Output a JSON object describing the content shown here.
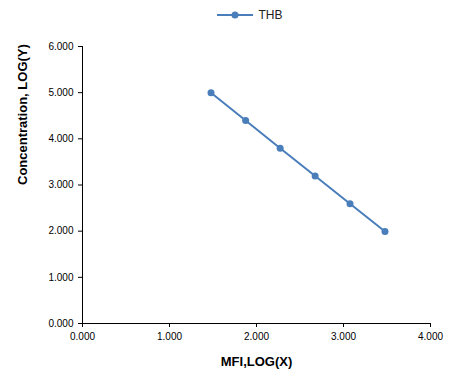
{
  "chart_data": {
    "type": "line",
    "x_label": "MFI,LOG(X)",
    "y_label": "Concentration, LOG(Y)",
    "series": [
      {
        "name": "THB",
        "color": "#4a7ebb",
        "marker": "circle",
        "line_style": "solid",
        "x": [
          1.477,
          1.875,
          2.272,
          2.674,
          3.075,
          3.477
        ],
        "values": [
          5.0,
          4.398,
          3.796,
          3.194,
          2.592,
          1.991
        ]
      }
    ],
    "xlim": [
      0,
      4
    ],
    "xticks": [
      {
        "value": 0,
        "label": "0.000"
      },
      {
        "value": 1,
        "label": "1.000"
      },
      {
        "value": 2,
        "label": "2.000"
      },
      {
        "value": 3,
        "label": "3.000"
      },
      {
        "value": 4,
        "label": "4.000"
      }
    ],
    "ylim": [
      0,
      6
    ],
    "yticks": [
      {
        "value": 0,
        "label": "0.000"
      },
      {
        "value": 1,
        "label": "1.000"
      },
      {
        "value": 2,
        "label": "2.000"
      },
      {
        "value": 3,
        "label": "3.000"
      },
      {
        "value": 4,
        "label": "4.000"
      },
      {
        "value": 5,
        "label": "5.000"
      },
      {
        "value": 6,
        "label": "6.000"
      }
    ],
    "legend": "top",
    "grid": false
  }
}
